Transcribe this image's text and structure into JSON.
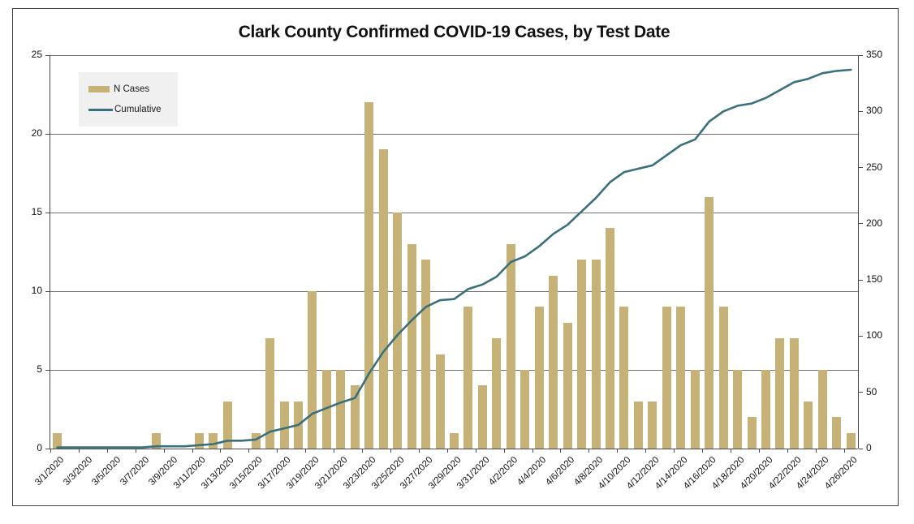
{
  "figure": {
    "background": "#FFFFFF",
    "border_color": "#3E3E3E"
  },
  "chart_data": {
    "type": "bar",
    "subtype": "bar-line-combo",
    "title": "Clark County Confirmed COVID-19 Cases, by Test Date",
    "grid": "horizontal",
    "categories": [
      "3/1/2020",
      "3/2/2020",
      "3/3/2020",
      "3/4/2020",
      "3/5/2020",
      "3/6/2020",
      "3/7/2020",
      "3/8/2020",
      "3/9/2020",
      "3/10/2020",
      "3/11/2020",
      "3/12/2020",
      "3/13/2020",
      "3/14/2020",
      "3/15/2020",
      "3/16/2020",
      "3/17/2020",
      "3/18/2020",
      "3/19/2020",
      "3/20/2020",
      "3/21/2020",
      "3/22/2020",
      "3/23/2020",
      "3/24/2020",
      "3/25/2020",
      "3/26/2020",
      "3/27/2020",
      "3/28/2020",
      "3/29/2020",
      "3/30/2020",
      "3/31/2020",
      "4/1/2020",
      "4/2/2020",
      "4/3/2020",
      "4/4/2020",
      "4/5/2020",
      "4/6/2020",
      "4/7/2020",
      "4/8/2020",
      "4/9/2020",
      "4/10/2020",
      "4/11/2020",
      "4/12/2020",
      "4/13/2020",
      "4/14/2020",
      "4/15/2020",
      "4/16/2020",
      "4/17/2020",
      "4/18/2020",
      "4/19/2020",
      "4/20/2020",
      "4/21/2020",
      "4/22/2020",
      "4/23/2020",
      "4/24/2020",
      "4/25/2020",
      "4/26/2020"
    ],
    "series": [
      {
        "name": "N Cases",
        "type": "bar",
        "axis": "left",
        "color": "#C6B276",
        "values": [
          1,
          0,
          0,
          0,
          0,
          0,
          0,
          1,
          0,
          0,
          1,
          1,
          3,
          0,
          1,
          7,
          3,
          3,
          10,
          5,
          5,
          4,
          22,
          19,
          15,
          13,
          12,
          6,
          1,
          9,
          4,
          7,
          13,
          5,
          9,
          11,
          8,
          12,
          12,
          14,
          9,
          3,
          3,
          9,
          9,
          5,
          16,
          9,
          5,
          2,
          5,
          7,
          7,
          3,
          5,
          2,
          1
        ]
      },
      {
        "name": "Cumulative",
        "type": "line",
        "axis": "right",
        "color": "#3A6F7C",
        "values": [
          1,
          1,
          1,
          1,
          1,
          1,
          1,
          2,
          2,
          2,
          3,
          4,
          7,
          7,
          8,
          15,
          18,
          21,
          31,
          36,
          41,
          45,
          67,
          86,
          101,
          114,
          126,
          132,
          133,
          142,
          146,
          153,
          166,
          171,
          180,
          191,
          199,
          211,
          223,
          237,
          246,
          249,
          252,
          261,
          270,
          275,
          291,
          300,
          305,
          307,
          312,
          319,
          326,
          329,
          334,
          336,
          337
        ]
      }
    ],
    "axes": {
      "left": {
        "min": 0,
        "max": 25,
        "step": 5,
        "tick_labels": [
          "0",
          "5",
          "10",
          "15",
          "20",
          "25"
        ]
      },
      "right": {
        "min": 0,
        "max": 350,
        "step": 50,
        "tick_labels": [
          "0",
          "50",
          "100",
          "150",
          "200",
          "250",
          "300",
          "350"
        ]
      },
      "x": {
        "tick_every": 2,
        "label_rotation_deg": 45,
        "tick_labels": [
          "3/1/2020",
          "3/3/2020",
          "3/5/2020",
          "3/7/2020",
          "3/9/2020",
          "3/11/2020",
          "3/13/2020",
          "3/15/2020",
          "3/17/2020",
          "3/19/2020",
          "3/21/2020",
          "3/23/2020",
          "3/25/2020",
          "3/27/2020",
          "3/29/2020",
          "3/31/2020",
          "4/2/2020",
          "4/4/2020",
          "4/6/2020",
          "4/8/2020",
          "4/10/2020",
          "4/12/2020",
          "4/14/2020",
          "4/16/2020",
          "4/18/2020",
          "4/20/2020",
          "4/22/2020",
          "4/24/2020",
          "4/26/2020"
        ]
      }
    },
    "legend": {
      "position": "top-left",
      "background": "#F0F0F0",
      "entries": [
        "N Cases",
        "Cumulative"
      ]
    }
  }
}
